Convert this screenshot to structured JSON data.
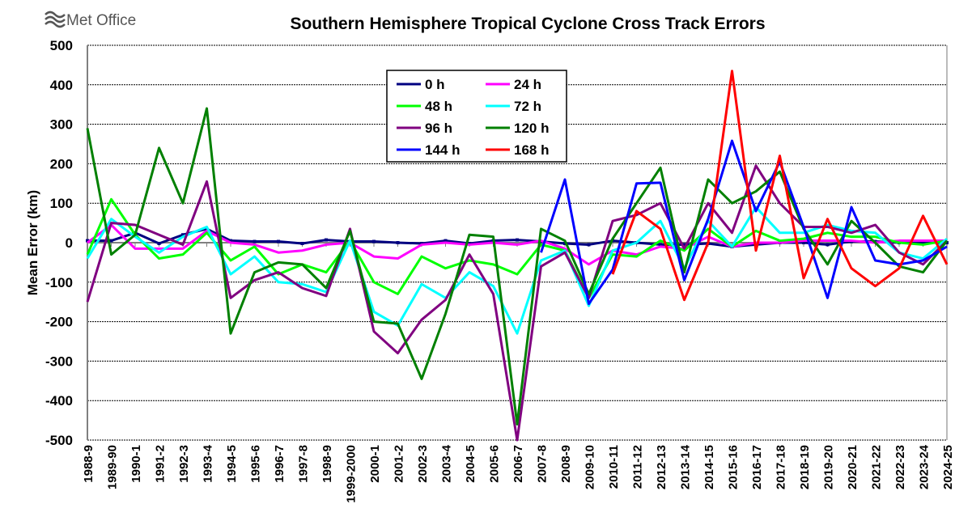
{
  "logo": "Met Office",
  "chart_data": {
    "type": "line",
    "title": "Southern Hemisphere Tropical Cyclone Cross Track Errors",
    "xlabel": "",
    "ylabel": "Mean Error (km)",
    "ylim": [
      -500,
      500
    ],
    "yticks": [
      500,
      400,
      300,
      200,
      100,
      0,
      -100,
      -200,
      -300,
      -400,
      -500
    ],
    "grid": true,
    "legend_position": "top-center",
    "categories": [
      "1988-9",
      "1989-90",
      "1990-1",
      "1991-2",
      "1992-3",
      "1993-4",
      "1994-5",
      "1995-6",
      "1996-7",
      "1997-8",
      "1998-9",
      "1999-2000",
      "2000-1",
      "2001-2",
      "2002-3",
      "2003-4",
      "2004-5",
      "2005-6",
      "2006-7",
      "2007-8",
      "2008-9",
      "2009-10",
      "2010-11",
      "2011-12",
      "2012-13",
      "2013-14",
      "2014-15",
      "2015-16",
      "2016-17",
      "2017-18",
      "2018-19",
      "2019-20",
      "2020-21",
      "2021-22",
      "2022-23",
      "2023-24",
      "2024-25"
    ],
    "series": [
      {
        "name": "0 h",
        "color": "#000080",
        "values": [
          5,
          5,
          25,
          -2,
          20,
          35,
          5,
          3,
          3,
          -2,
          7,
          3,
          3,
          0,
          -2,
          5,
          -2,
          5,
          7,
          3,
          -2,
          -5,
          5,
          0,
          -5,
          -5,
          -2,
          -10,
          -5,
          0,
          0,
          -5,
          3,
          3,
          0,
          0,
          0
        ]
      },
      {
        "name": "24 h",
        "color": "#ff00ff",
        "values": [
          0,
          45,
          -15,
          -15,
          -15,
          30,
          0,
          -5,
          -25,
          -20,
          -5,
          0,
          -35,
          -40,
          -5,
          0,
          -5,
          0,
          -5,
          5,
          -15,
          -55,
          -20,
          -30,
          -10,
          -15,
          15,
          -10,
          0,
          0,
          5,
          5,
          5,
          0,
          5,
          5,
          5
        ]
      },
      {
        "name": "48 h",
        "color": "#00ff00",
        "values": [
          -30,
          110,
          20,
          -40,
          -30,
          25,
          -45,
          -10,
          -80,
          -55,
          -75,
          5,
          -100,
          -130,
          -35,
          -65,
          -45,
          -55,
          -80,
          -5,
          -20,
          -140,
          -30,
          -35,
          5,
          -20,
          35,
          -10,
          30,
          5,
          10,
          25,
          15,
          15,
          0,
          -5,
          5
        ]
      },
      {
        "name": "72 h",
        "color": "#00ffff",
        "values": [
          -40,
          60,
          15,
          -25,
          15,
          40,
          -80,
          -35,
          -100,
          -105,
          -125,
          5,
          -175,
          -210,
          -105,
          -140,
          -75,
          -110,
          -230,
          -45,
          -20,
          -160,
          -20,
          0,
          55,
          -65,
          55,
          -10,
          90,
          25,
          25,
          45,
          30,
          25,
          -25,
          -40,
          10
        ]
      },
      {
        "name": "96 h",
        "color": "#800080",
        "values": [
          -150,
          50,
          45,
          20,
          -5,
          155,
          -140,
          -95,
          -75,
          -115,
          -135,
          35,
          -225,
          -280,
          -195,
          -145,
          -30,
          -130,
          -500,
          -60,
          -25,
          -140,
          55,
          70,
          100,
          -15,
          100,
          25,
          195,
          100,
          40,
          40,
          25,
          45,
          -25,
          -55,
          5
        ]
      },
      {
        "name": "120 h",
        "color": "#008000",
        "values": [
          290,
          -30,
          20,
          240,
          100,
          340,
          -230,
          -75,
          -50,
          -55,
          -115,
          30,
          -200,
          -205,
          -345,
          -180,
          20,
          15,
          -460,
          35,
          5,
          -130,
          10,
          100,
          190,
          -75,
          160,
          100,
          130,
          180,
          35,
          -55,
          55,
          0,
          -60,
          -75,
          5
        ]
      },
      {
        "name": "144 h",
        "color": "#0000ff",
        "values": [
          null,
          null,
          null,
          null,
          null,
          null,
          null,
          null,
          null,
          null,
          null,
          null,
          null,
          null,
          null,
          null,
          null,
          null,
          null,
          -25,
          160,
          -155,
          -68,
          150,
          152,
          -95,
          60,
          258,
          80,
          205,
          40,
          -140,
          90,
          -45,
          -55,
          -45,
          -10
        ]
      },
      {
        "name": "168 h",
        "color": "#ff0000",
        "values": [
          null,
          null,
          null,
          null,
          null,
          null,
          null,
          null,
          null,
          null,
          null,
          null,
          null,
          null,
          null,
          null,
          null,
          null,
          null,
          null,
          null,
          null,
          -80,
          80,
          35,
          -145,
          0,
          435,
          -20,
          220,
          -90,
          60,
          -65,
          -110,
          -65,
          68,
          -55
        ]
      }
    ]
  }
}
